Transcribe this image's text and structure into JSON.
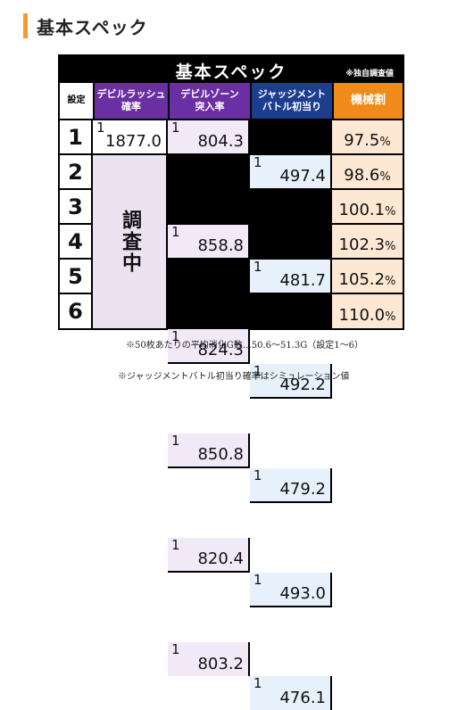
{
  "heading": "基本スペック",
  "table": {
    "title": "基本スペック",
    "note": "※独自調査値",
    "headers": {
      "setting": "設定",
      "devil_rush_l1": "デビルラッシュ",
      "devil_rush_l2": "確率",
      "devil_zone_l1": "デビルゾーン",
      "devil_zone_l2": "突入率",
      "judgment_l1": "ジャッジメント",
      "judgment_l2": "バトル初当り",
      "payout": "機械割"
    },
    "fraction_numerator": "1",
    "percent_unit": "%",
    "devil_rush_shared": "調査中",
    "rows": [
      {
        "setting": "1",
        "devil_rush": "1877.0",
        "devil_zone": "804.3",
        "judgment": "497.4",
        "payout": "97.5"
      },
      {
        "setting": "2",
        "devil_zone": "858.8",
        "judgment": "481.7",
        "payout": "98.6"
      },
      {
        "setting": "3",
        "devil_zone": "824.3",
        "judgment": "492.2",
        "payout": "100.1"
      },
      {
        "setting": "4",
        "devil_zone": "850.8",
        "judgment": "479.2",
        "payout": "102.3"
      },
      {
        "setting": "5",
        "devil_zone": "820.4",
        "judgment": "493.0",
        "payout": "105.2"
      },
      {
        "setting": "6",
        "devil_zone": "803.2",
        "judgment": "476.1",
        "payout": "110.0"
      }
    ]
  },
  "footnotes": [
    "※50枚あたりの平均消化G数…50.6～51.3G（設定1～6）",
    "※ジャッジメントバトル初当り確率はシミュレーション値"
  ]
}
